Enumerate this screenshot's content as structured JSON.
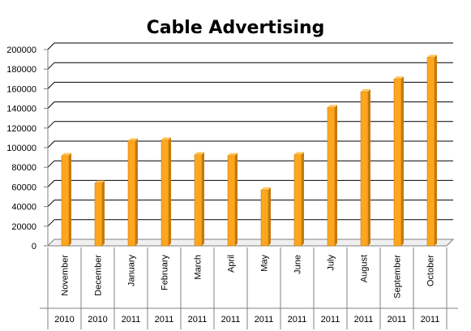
{
  "chart_data": {
    "type": "bar",
    "title": "Cable Advertising",
    "xlabel": "",
    "ylabel": "",
    "categories": [
      "November",
      "December",
      "January",
      "February",
      "March",
      "April",
      "May",
      "June",
      "July",
      "August",
      "September",
      "October"
    ],
    "years": [
      "2010",
      "2010",
      "2011",
      "2011",
      "2011",
      "2011",
      "2011",
      "2011",
      "2011",
      "2011",
      "2011",
      "2011"
    ],
    "values": [
      92000,
      64000,
      107000,
      108000,
      93000,
      92000,
      57000,
      93000,
      141000,
      157000,
      170000,
      192000
    ],
    "yticks": [
      "0",
      "20000",
      "40000",
      "60000",
      "80000",
      "100000",
      "120000",
      "140000",
      "160000",
      "180000",
      "200000"
    ],
    "ylim": [
      0,
      200000
    ],
    "grid": true,
    "legend": "none",
    "colors": {
      "bar_front": "#FFA61E",
      "bar_side": "#C27A0E",
      "bar_top": "#FFC45A",
      "grid": "#000000",
      "axis": "#808080"
    }
  }
}
